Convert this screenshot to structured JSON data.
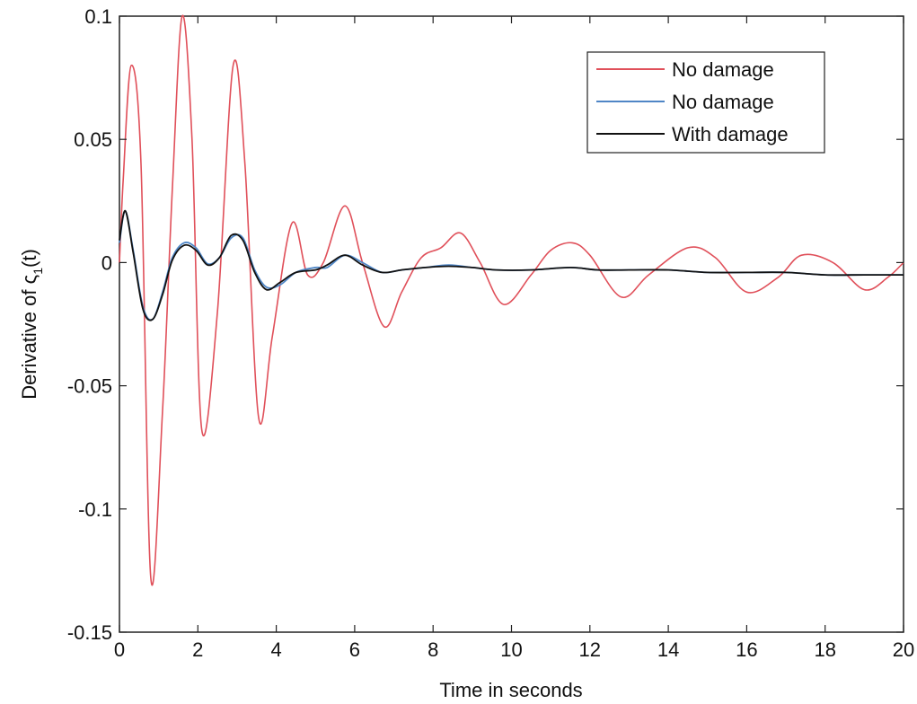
{
  "chart_data": {
    "type": "line",
    "xlabel": "Time in seconds",
    "ylabel": "Derivative of ς",
    "ylabel_sub": "1",
    "ylabel_tail": "(t)",
    "xlim": [
      0,
      20
    ],
    "ylim": [
      -0.15,
      0.1
    ],
    "xticks": [
      0,
      2,
      4,
      6,
      8,
      10,
      12,
      14,
      16,
      18,
      20
    ],
    "xtick_labels": [
      "0",
      "2",
      "4",
      "6",
      "8",
      "10",
      "12",
      "14",
      "16",
      "18",
      "20"
    ],
    "yticks": [
      -0.15,
      -0.1,
      -0.05,
      0,
      0.05,
      0.1
    ],
    "ytick_labels": [
      "-0.15",
      "-0.1",
      "-0.05",
      "0",
      "0.05",
      "0.1"
    ],
    "grid": false,
    "legend_position": "top-right",
    "series": [
      {
        "name": "No damage",
        "color": "#e0505a",
        "x": [
          0,
          0.1,
          0.3,
          0.55,
          0.8,
          1.1,
          1.35,
          1.6,
          1.85,
          2.1,
          2.5,
          2.9,
          3.2,
          3.55,
          3.9,
          4.4,
          4.8,
          5.2,
          5.75,
          6.2,
          6.75,
          7.2,
          7.7,
          8.2,
          8.7,
          9.2,
          9.8,
          10.5,
          11.0,
          11.55,
          12.0,
          12.8,
          13.5,
          14.5,
          15.2,
          16.0,
          16.8,
          17.4,
          18.2,
          19.0,
          19.6,
          20.0
        ],
        "values": [
          0.0,
          0.035,
          0.08,
          0.04,
          -0.128,
          -0.06,
          0.03,
          0.1,
          0.05,
          -0.068,
          -0.02,
          0.08,
          0.04,
          -0.063,
          -0.03,
          0.016,
          -0.005,
          0.0,
          0.023,
          0.0,
          -0.026,
          -0.012,
          0.002,
          0.006,
          0.012,
          0.0,
          -0.017,
          -0.005,
          0.005,
          0.008,
          0.003,
          -0.014,
          -0.005,
          0.006,
          0.002,
          -0.012,
          -0.006,
          0.003,
          0.0,
          -0.011,
          -0.006,
          0.0
        ]
      },
      {
        "name": "No damage",
        "color": "#4f86c6",
        "x": [
          0,
          0.15,
          0.35,
          0.6,
          0.85,
          1.1,
          1.35,
          1.65,
          1.95,
          2.25,
          2.55,
          2.85,
          3.15,
          3.45,
          3.75,
          4.1,
          4.5,
          5.0,
          5.3,
          5.75,
          6.2,
          6.7,
          7.2,
          7.8,
          8.4,
          9.0,
          9.6,
          10.5,
          11.5,
          12.2,
          13.0,
          14.0,
          15.0,
          16.0,
          17.0,
          18.0,
          19.0,
          20.0
        ],
        "values": [
          0.008,
          0.021,
          0.005,
          -0.018,
          -0.023,
          -0.012,
          0.002,
          0.008,
          0.006,
          -0.0005,
          0.002,
          0.01,
          0.01,
          -0.003,
          -0.01,
          -0.009,
          -0.004,
          -0.002,
          -0.002,
          0.003,
          0.0,
          -0.004,
          -0.003,
          -0.002,
          -0.001,
          -0.002,
          -0.003,
          -0.003,
          -0.002,
          -0.003,
          -0.003,
          -0.003,
          -0.004,
          -0.004,
          -0.004,
          -0.005,
          -0.005,
          -0.005
        ]
      },
      {
        "name": "With damage",
        "color": "#111111",
        "x": [
          0,
          0.15,
          0.35,
          0.6,
          0.85,
          1.1,
          1.35,
          1.65,
          1.95,
          2.25,
          2.55,
          2.85,
          3.15,
          3.45,
          3.75,
          4.1,
          4.5,
          5.0,
          5.3,
          5.75,
          6.2,
          6.7,
          7.2,
          7.8,
          8.4,
          9.0,
          9.6,
          10.5,
          11.5,
          12.2,
          13.0,
          14.0,
          15.0,
          16.0,
          17.0,
          18.0,
          19.0,
          20.0
        ],
        "values": [
          0.009,
          0.021,
          0.004,
          -0.019,
          -0.023,
          -0.013,
          0.001,
          0.007,
          0.005,
          -0.001,
          0.002,
          0.011,
          0.009,
          -0.004,
          -0.011,
          -0.008,
          -0.004,
          -0.003,
          -0.001,
          0.003,
          -0.001,
          -0.004,
          -0.003,
          -0.002,
          -0.0015,
          -0.002,
          -0.003,
          -0.003,
          -0.002,
          -0.003,
          -0.003,
          -0.003,
          -0.004,
          -0.004,
          -0.004,
          -0.005,
          -0.005,
          -0.005
        ]
      }
    ]
  }
}
